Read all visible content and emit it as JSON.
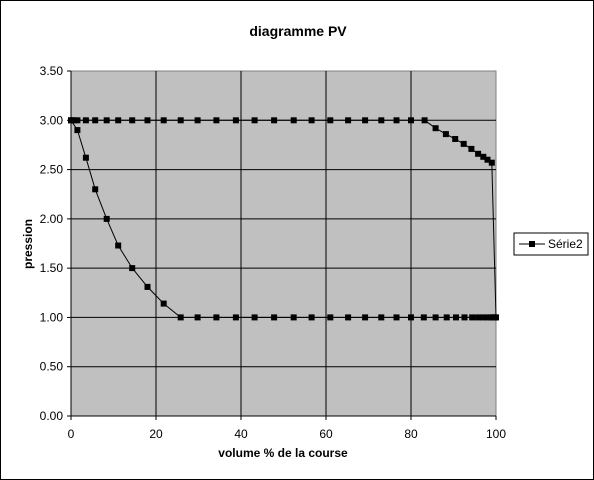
{
  "chart_data": {
    "type": "line",
    "title": "diagramme PV",
    "xlabel": "volume % de la course",
    "ylabel": "pression",
    "xlim": [
      0,
      100
    ],
    "ylim": [
      0,
      3.5
    ],
    "xticks": [
      "0",
      "20",
      "40",
      "60",
      "80",
      "100"
    ],
    "yticks": [
      "0.00",
      "0.50",
      "1.00",
      "1.50",
      "2.00",
      "2.50",
      "3.00",
      "3.50"
    ],
    "grid": true,
    "plot_background": "#c0c0c0",
    "line_color": "#000000",
    "legend_position": "right",
    "series": [
      {
        "name": "Série2",
        "marker": "square",
        "x": [
          0,
          1.5,
          3.5,
          5.7,
          8.4,
          11.1,
          14.4,
          18,
          21.8,
          25.8,
          29.8,
          34.2,
          38.8,
          43.2,
          47.8,
          52.4,
          56.6,
          61,
          65.2,
          69.2,
          73,
          76.6,
          80,
          83,
          85.8,
          88.4,
          90.6,
          92.6,
          94.4,
          95.8,
          97,
          98,
          98.7,
          99.2,
          99.5,
          99.8,
          100,
          99,
          98,
          97,
          95.8,
          94.2,
          92.4,
          90.4,
          88.2,
          85.8,
          83.2,
          80,
          76.6,
          73,
          69.2,
          65.2,
          61,
          56.6,
          52.4,
          47.8,
          43.2,
          38.8,
          34.2,
          29.8,
          25.8,
          21.8,
          18,
          14.4,
          11.1,
          8.4,
          5.7,
          3.5,
          1.5,
          0.7,
          0
        ],
        "y": [
          3,
          2.9,
          2.62,
          2.3,
          2,
          1.73,
          1.5,
          1.31,
          1.14,
          1,
          1,
          1,
          1,
          1,
          1,
          1,
          1,
          1,
          1,
          1,
          1,
          1,
          1,
          1,
          1,
          1,
          1,
          1,
          1,
          1,
          1,
          1,
          1,
          1,
          1,
          1,
          1,
          2.57,
          2.6,
          2.63,
          2.66,
          2.71,
          2.76,
          2.81,
          2.86,
          2.92,
          3,
          3,
          3,
          3,
          3,
          3,
          3,
          3,
          3,
          3,
          3,
          3,
          3,
          3,
          3,
          3,
          3,
          3,
          3,
          3,
          3,
          3,
          3,
          3,
          3
        ]
      }
    ]
  }
}
